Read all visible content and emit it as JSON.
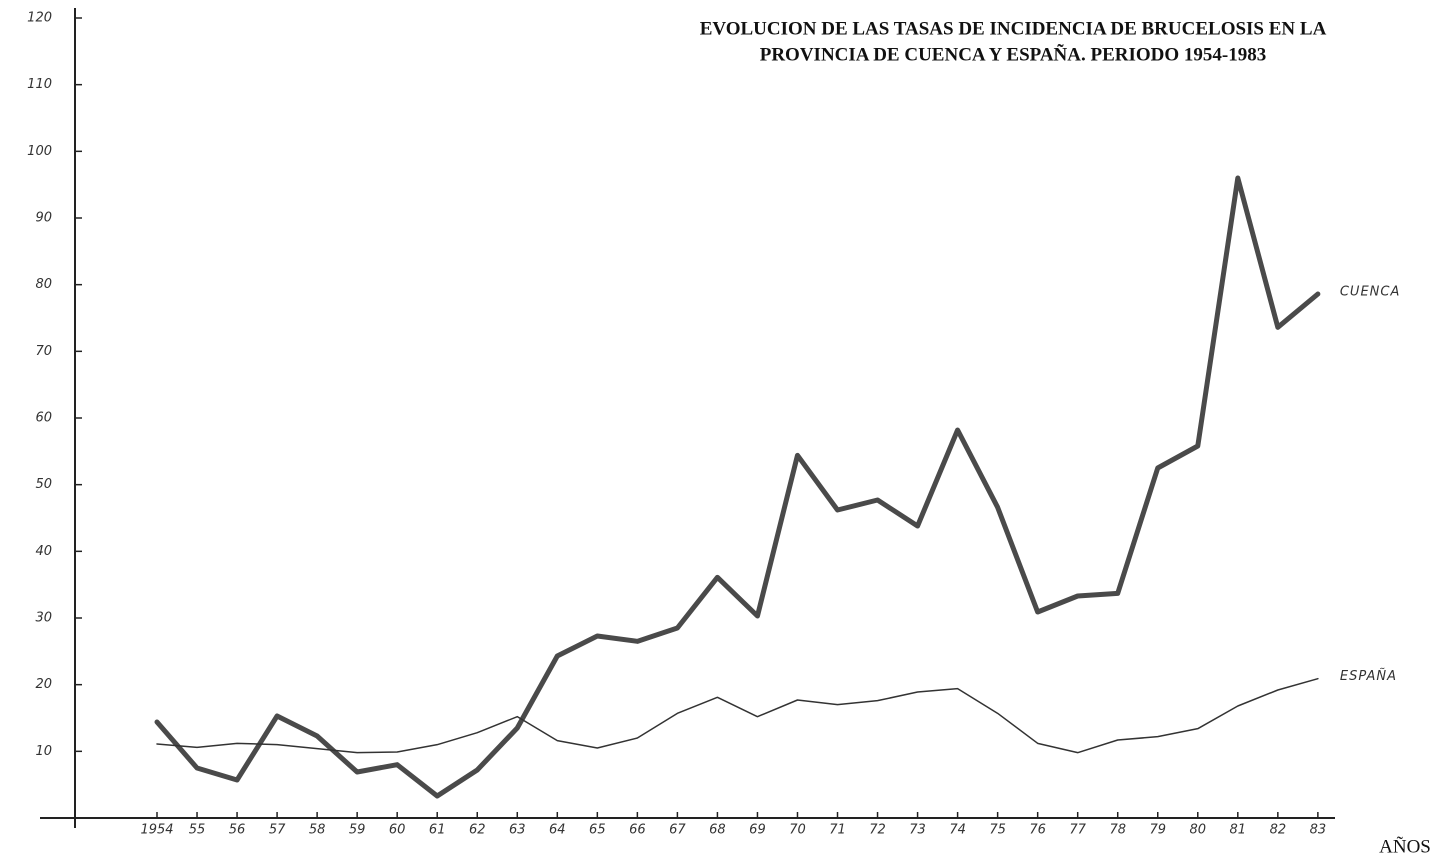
{
  "chart_data": {
    "type": "line",
    "title": [
      "EVOLUCION DE LAS TASAS DE INCIDENCIA DE BRUCELOSIS EN LA",
      "PROVINCIA DE CUENCA Y ESPAÑA. PERIODO 1954-1983"
    ],
    "x_label": "AÑOS",
    "categories": [
      "1954",
      "55",
      "56",
      "57",
      "58",
      "59",
      "60",
      "61",
      "62",
      "63",
      "64",
      "65",
      "66",
      "67",
      "68",
      "69",
      "70",
      "71",
      "72",
      "73",
      "74",
      "75",
      "76",
      "77",
      "78",
      "79",
      "80",
      "81",
      "82",
      "83"
    ],
    "series": [
      {
        "name": "CUENCA",
        "color": "#4a4a4a",
        "width": 5,
        "values": [
          14.4,
          7.5,
          5.7,
          15.3,
          12.3,
          6.9,
          8,
          3.3,
          7.2,
          13.5,
          24.3,
          27.3,
          26.5,
          28.5,
          36.1,
          30.3,
          54.4,
          46.2,
          47.7,
          43.8,
          58.2,
          46.6,
          30.9,
          33.3,
          33.7,
          52.5,
          55.8,
          96,
          73.6,
          78.6
        ]
      },
      {
        "name": "ESPAÑA",
        "color": "#333333",
        "width": 1.5,
        "values": [
          11.1,
          10.6,
          11.2,
          11,
          10.4,
          9.8,
          9.9,
          11,
          12.8,
          15.2,
          11.6,
          10.5,
          12,
          15.7,
          18.1,
          15.2,
          17.7,
          17,
          17.6,
          18.9,
          19.4,
          15.7,
          11.2,
          9.8,
          11.7,
          12.2,
          13.4,
          16.8,
          19.2,
          20.9
        ]
      }
    ],
    "ylim": [
      0,
      120
    ],
    "yticks": [
      10,
      20,
      30,
      40,
      50,
      60,
      70,
      80,
      90,
      100,
      110,
      120
    ]
  }
}
